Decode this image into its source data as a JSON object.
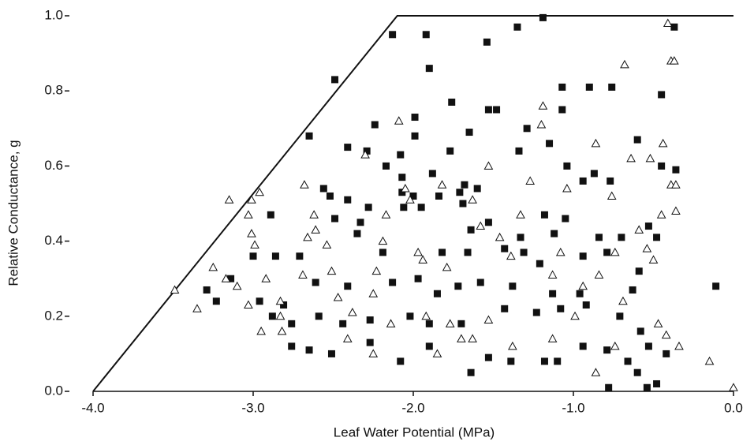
{
  "chart_data": {
    "type": "scatter",
    "xlabel": "Leaf Water Potential (MPa)",
    "ylabel": "Relative Conductance, g",
    "xlim": [
      -4,
      0
    ],
    "ylim": [
      0,
      1
    ],
    "xticks": [
      {
        "value": -4,
        "label": "-4.0"
      },
      {
        "value": -3,
        "label": "-3.0"
      },
      {
        "value": -2,
        "label": "-2.0"
      },
      {
        "value": -1,
        "label": "-1.0"
      },
      {
        "value": 0,
        "label": "0.0"
      }
    ],
    "yticks": [
      {
        "value": 0,
        "label": "0.0"
      },
      0.2,
      0.4,
      0.6,
      0.8,
      {
        "value": 1,
        "label": "1.0"
      }
    ],
    "envelope": {
      "color": "#111111",
      "x": [
        -4,
        -2.1,
        0
      ],
      "y": [
        0,
        1,
        1
      ]
    },
    "series": [
      {
        "marker": "square",
        "color": "#111111",
        "x": [
          -2.13,
          -1.92,
          -1.19,
          -1.54,
          -1.35,
          -0.37,
          -1.9,
          -2.49,
          -2.65,
          -2.41,
          -2.29,
          -2.24,
          -2.17,
          -2.08,
          -1.99,
          -1.99,
          -1.76,
          -1.65,
          -1.53,
          -1.48,
          -1.34,
          -1.29,
          -1.15,
          -1.07,
          -1.07,
          -0.9,
          -0.76,
          -0.6,
          -0.45,
          -0.45,
          -0.36,
          -1.04,
          -0.94,
          -0.77,
          -0.87,
          -1.88,
          -1.77,
          -2.07,
          -1.68,
          -2.56,
          -2.52,
          -2.41,
          -2.07,
          -2.0,
          -1.84,
          -1.71,
          -1.69,
          -1.6,
          -1.95,
          -2.06,
          -2.28,
          -2.89,
          -2.49,
          -2.33,
          -2.35,
          -1.18,
          -1.05,
          -1.53,
          -1.64,
          -0.84,
          -0.7,
          -0.48,
          -0.53,
          -1.12,
          -1.33,
          -3.0,
          -2.86,
          -2.71,
          -2.19,
          -1.82,
          -1.66,
          -1.43,
          -1.31,
          -1.21,
          -0.94,
          -0.79,
          -0.59,
          -3.14,
          -3.29,
          -3.23,
          -2.96,
          -2.81,
          -2.61,
          -2.41,
          -2.13,
          -1.97,
          -1.85,
          -1.72,
          -1.58,
          -1.38,
          -1.13,
          -0.96,
          -0.63,
          -0.11,
          -2.88,
          -2.76,
          -2.59,
          -2.44,
          -2.27,
          -2.02,
          -1.9,
          -1.7,
          -1.43,
          -1.23,
          -1.08,
          -0.92,
          -0.71,
          -0.58,
          -2.76,
          -2.65,
          -2.51,
          -2.27,
          -2.08,
          -1.9,
          -1.64,
          -1.53,
          -1.39,
          -1.18,
          -1.1,
          -0.94,
          -0.79,
          -0.66,
          -0.6,
          -0.78,
          -0.54,
          -0.48,
          -0.42,
          -0.53
        ],
        "y": [
          0.95,
          0.95,
          0.995,
          0.93,
          0.97,
          0.97,
          0.86,
          0.83,
          0.68,
          0.65,
          0.64,
          0.71,
          0.6,
          0.63,
          0.68,
          0.73,
          0.77,
          0.69,
          0.75,
          0.75,
          0.64,
          0.7,
          0.66,
          0.75,
          0.81,
          0.81,
          0.81,
          0.67,
          0.79,
          0.6,
          0.59,
          0.6,
          0.56,
          0.56,
          0.58,
          0.58,
          0.64,
          0.57,
          0.55,
          0.54,
          0.52,
          0.51,
          0.53,
          0.52,
          0.52,
          0.53,
          0.5,
          0.54,
          0.49,
          0.49,
          0.49,
          0.47,
          0.46,
          0.45,
          0.42,
          0.47,
          0.46,
          0.45,
          0.43,
          0.41,
          0.41,
          0.41,
          0.44,
          0.42,
          0.41,
          0.36,
          0.36,
          0.36,
          0.37,
          0.37,
          0.37,
          0.38,
          0.37,
          0.34,
          0.36,
          0.37,
          0.32,
          0.3,
          0.27,
          0.24,
          0.24,
          0.23,
          0.29,
          0.28,
          0.29,
          0.3,
          0.26,
          0.28,
          0.29,
          0.28,
          0.26,
          0.26,
          0.27,
          0.28,
          0.2,
          0.18,
          0.2,
          0.18,
          0.19,
          0.2,
          0.18,
          0.18,
          0.22,
          0.21,
          0.22,
          0.23,
          0.2,
          0.16,
          0.12,
          0.11,
          0.1,
          0.13,
          0.08,
          0.12,
          0.05,
          0.09,
          0.08,
          0.08,
          0.08,
          0.12,
          0.11,
          0.08,
          0.05,
          0.01,
          0.01,
          0.02,
          0.1,
          0.12
        ]
      },
      {
        "marker": "triangle",
        "color": "#111111",
        "x": [
          -3.49,
          -3.35,
          -3.25,
          -3.17,
          -3.1,
          -3.03,
          -3.15,
          -3.01,
          -2.96,
          -3.03,
          -3.01,
          -2.99,
          -2.92,
          -2.95,
          -2.83,
          -2.83,
          -2.69,
          -2.66,
          -2.62,
          -2.68,
          -2.61,
          -2.54,
          -2.51,
          -2.47,
          -2.38,
          -2.3,
          -2.25,
          -2.23,
          -2.19,
          -2.17,
          -2.14,
          -2.09,
          -2.05,
          -2.02,
          -1.97,
          -1.94,
          -1.92,
          -1.82,
          -1.79,
          -1.77,
          -1.7,
          -1.63,
          -1.58,
          -1.53,
          -1.46,
          -1.39,
          -1.33,
          -1.27,
          -1.2,
          -1.19,
          -1.13,
          -1.08,
          -1.04,
          -0.99,
          -0.94,
          -0.86,
          -0.84,
          -0.76,
          -0.74,
          -0.69,
          -0.68,
          -0.64,
          -0.59,
          -0.54,
          -0.52,
          -0.5,
          -0.47,
          -0.42,
          -0.41,
          -0.39,
          -0.37,
          -0.39,
          -0.36,
          -0.36,
          -0.34,
          -0.44,
          -0.45,
          -0.15,
          0,
          -0.86,
          -0.74,
          -1.13,
          -1.38,
          -1.63,
          -1.85,
          -2.25,
          -2.41,
          -2.82,
          -1.53
        ],
        "y": [
          0.27,
          0.22,
          0.33,
          0.3,
          0.28,
          0.23,
          0.51,
          0.51,
          0.53,
          0.47,
          0.42,
          0.39,
          0.3,
          0.16,
          0.24,
          0.2,
          0.31,
          0.41,
          0.47,
          0.55,
          0.43,
          0.39,
          0.32,
          0.25,
          0.21,
          0.63,
          0.26,
          0.32,
          0.4,
          0.47,
          0.18,
          0.72,
          0.54,
          0.51,
          0.37,
          0.35,
          0.2,
          0.55,
          0.33,
          0.18,
          0.14,
          0.51,
          0.44,
          0.6,
          0.41,
          0.36,
          0.47,
          0.56,
          0.71,
          0.76,
          0.31,
          0.37,
          0.54,
          0.2,
          0.28,
          0.66,
          0.31,
          0.52,
          0.37,
          0.24,
          0.87,
          0.62,
          0.43,
          0.38,
          0.62,
          0.35,
          0.18,
          0.15,
          0.98,
          0.88,
          0.88,
          0.55,
          0.48,
          0.55,
          0.12,
          0.66,
          0.47,
          0.08,
          0.01,
          0.05,
          0.12,
          0.14,
          0.12,
          0.14,
          0.1,
          0.1,
          0.14,
          0.16,
          0.19
        ]
      }
    ]
  }
}
